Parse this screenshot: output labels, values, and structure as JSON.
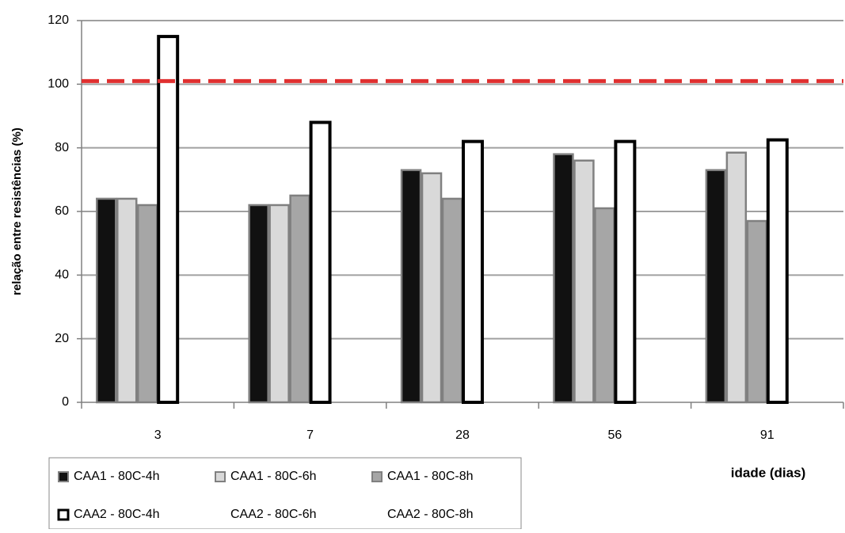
{
  "chart_data": {
    "type": "bar",
    "y_label": "relação entre resistências (%)",
    "x_label": "idade (dias)",
    "categories": [
      "3",
      "7",
      "28",
      "56",
      "91"
    ],
    "series": [
      {
        "name": "CAA1 - 80C-4h",
        "color": "#111111",
        "stroke": "#808080",
        "values": [
          64,
          62,
          73,
          78,
          73
        ]
      },
      {
        "name": "CAA1 - 80C-6h",
        "color": "#d9d9d9",
        "stroke": "#808080",
        "values": [
          64,
          62,
          72,
          76,
          78.5
        ]
      },
      {
        "name": "CAA1 - 80C-8h",
        "color": "#a6a6a6",
        "stroke": "#808080",
        "values": [
          62,
          65,
          64,
          61,
          57
        ]
      },
      {
        "name": "CAA2 - 80C-4h",
        "color": "#ffffff",
        "stroke": "#000000",
        "values": [
          115,
          88,
          82,
          82,
          82.5
        ]
      },
      {
        "name": "CAA2 - 80C-6h",
        "color": null,
        "stroke": null,
        "values": [
          null,
          null,
          null,
          null,
          null
        ]
      },
      {
        "name": "CAA2 - 80C-8h",
        "color": null,
        "stroke": null,
        "values": [
          null,
          null,
          null,
          null,
          null
        ]
      }
    ],
    "reference_line": {
      "value": 101,
      "color": "#e03030"
    },
    "ylim": [
      0,
      120
    ],
    "yticks": [
      0,
      20,
      40,
      60,
      80,
      100,
      120
    ],
    "grid": true,
    "legend": "bottom-left"
  }
}
